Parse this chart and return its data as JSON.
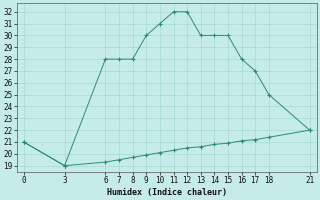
{
  "x_main": [
    0,
    3,
    6,
    7,
    8,
    9,
    10,
    11,
    12,
    13,
    14,
    15,
    16,
    17,
    18,
    21
  ],
  "y_main": [
    21,
    19,
    28,
    28,
    28,
    30,
    31,
    32,
    32,
    30,
    30,
    30,
    28,
    27,
    25,
    22
  ],
  "x_base": [
    0,
    3,
    6,
    7,
    8,
    9,
    10,
    11,
    12,
    13,
    14,
    15,
    16,
    17,
    18,
    21
  ],
  "y_base": [
    21,
    19,
    19.3,
    19.5,
    19.7,
    19.9,
    20.1,
    20.3,
    20.5,
    20.6,
    20.8,
    20.9,
    21.1,
    21.2,
    21.4,
    22
  ],
  "line_color": "#2E8B70",
  "bg_color": "#C5ECE8",
  "grid_color": "#A8D8D4",
  "xlabel": "Humidex (Indice chaleur)",
  "xticks": [
    0,
    3,
    6,
    7,
    8,
    9,
    10,
    11,
    12,
    13,
    14,
    15,
    16,
    17,
    18,
    21
  ],
  "yticks": [
    19,
    20,
    21,
    22,
    23,
    24,
    25,
    26,
    27,
    28,
    29,
    30,
    31,
    32
  ],
  "xlim": [
    -0.5,
    21.5
  ],
  "ylim": [
    18.5,
    32.7
  ],
  "axis_fontsize": 6,
  "tick_fontsize": 5.5
}
